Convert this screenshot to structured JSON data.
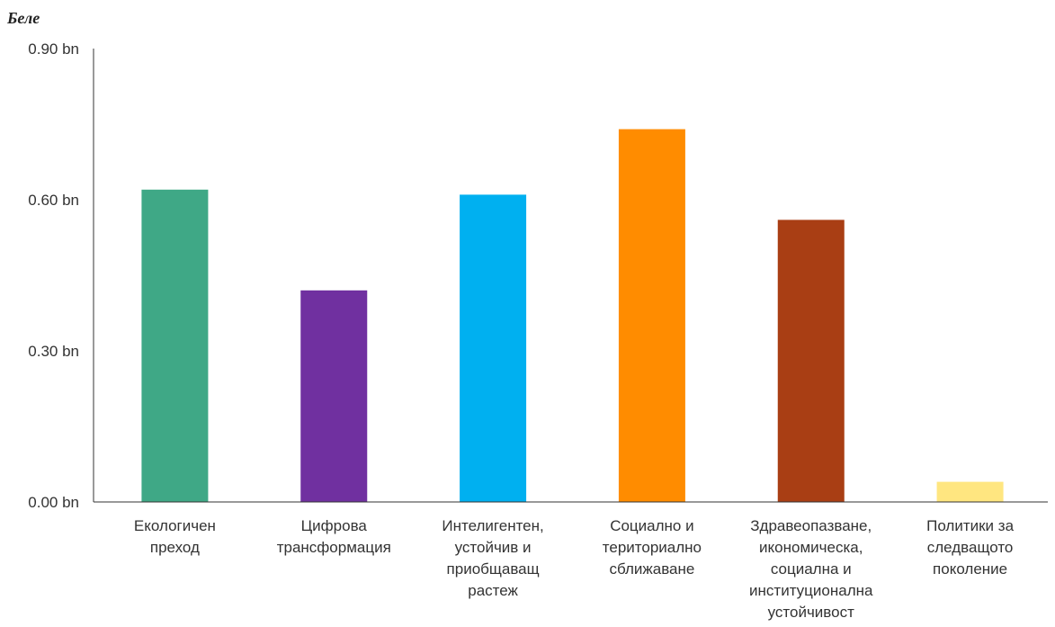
{
  "chart_data": {
    "type": "bar",
    "unit_label": "Беле",
    "categories": [
      [
        "Екологичен",
        "преход"
      ],
      [
        "Цифрова",
        "трансформация"
      ],
      [
        "Интелигентен,",
        "устойчив и",
        "приобщаващ",
        "растеж"
      ],
      [
        "Социално и",
        "териториално",
        "сближаване"
      ],
      [
        "Здравеопазване,",
        "икономическа,",
        "социална и",
        "институционална",
        "устойчивост"
      ],
      [
        "Политики за",
        "следващото",
        "поколение"
      ]
    ],
    "values": [
      0.62,
      0.42,
      0.61,
      0.74,
      0.56,
      0.04
    ],
    "colors": [
      "#3FA886",
      "#7030A0",
      "#00B0F0",
      "#FF8C00",
      "#A93E14",
      "#FFE680"
    ],
    "yticks": [
      {
        "value": 0.0,
        "label": "0.00 bn"
      },
      {
        "value": 0.3,
        "label": "0.30 bn"
      },
      {
        "value": 0.6,
        "label": "0.60 bn"
      },
      {
        "value": 0.9,
        "label": "0.90 bn"
      }
    ],
    "ylim": [
      0,
      0.9
    ],
    "grid": false,
    "legend": "none"
  }
}
